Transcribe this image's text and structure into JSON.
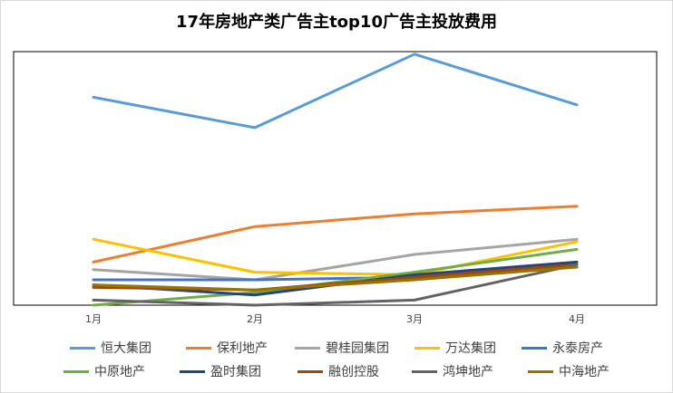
{
  "chart_data": {
    "type": "line",
    "title": "17年房地产类广告主top10广告主投放费用",
    "categories": [
      "1月",
      "2月",
      "3月",
      "4月"
    ],
    "ylim": [
      0,
      100
    ],
    "grid": false,
    "legend_position": "bottom",
    "series": [
      {
        "name": "恒大集团",
        "color": "#5b9bd5",
        "values": [
          82,
          70,
          99,
          79
        ]
      },
      {
        "name": "保利地产",
        "color": "#ed7d31",
        "values": [
          17,
          31,
          36,
          39
        ]
      },
      {
        "name": "碧桂园集团",
        "color": "#a5a5a5",
        "values": [
          14,
          10,
          20,
          26
        ]
      },
      {
        "name": "万达集团",
        "color": "#ffc000",
        "values": [
          26,
          13,
          12,
          25
        ]
      },
      {
        "name": "永泰房产",
        "color": "#4472c4",
        "values": [
          10,
          10,
          11,
          16
        ]
      },
      {
        "name": "中原地产",
        "color": "#70ad47",
        "values": [
          0,
          5,
          13,
          22
        ]
      },
      {
        "name": "盈时集团",
        "color": "#264478",
        "values": [
          8,
          4,
          12,
          17
        ]
      },
      {
        "name": "融创控股",
        "color": "#9e480e",
        "values": [
          7,
          6,
          11,
          16
        ]
      },
      {
        "name": "鸿坤地产",
        "color": "#636363",
        "values": [
          2,
          0,
          2,
          16
        ]
      },
      {
        "name": "中海地产",
        "color": "#997300",
        "values": [
          8,
          6,
          10,
          15
        ]
      }
    ]
  }
}
